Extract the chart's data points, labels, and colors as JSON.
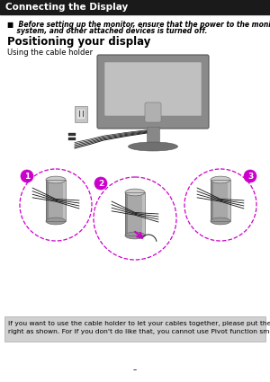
{
  "title": "Connecting the Display",
  "title_bg": "#1a1a1a",
  "title_color": "#ffffff",
  "title_fontsize": 7.5,
  "section_heading": "Positioning your display",
  "section_heading_fontsize": 8.5,
  "sub_heading": "Using the cable holder",
  "sub_heading_fontsize": 6.0,
  "bullet_text_line1": "■  Before setting up the monitor, ensure that the power to the monitor, the computer",
  "bullet_text_line2": "    system, and other attached devices is turned off.",
  "bullet_fontsize": 5.5,
  "footer_text_line1": "If you want to use the cable holder to let your cables together, please put them through",
  "footer_text_line2": "right as shown. For if you don't do like that, you cannot use Pivot function smoothly.",
  "footer_fontsize": 5.4,
  "footer_bg": "#d0d0d0",
  "page_bg": "#ffffff",
  "dashed_circle_color": "#cc00cc",
  "label_circle_color": "#cc00cc",
  "label_text_color": "#ffffff",
  "cable_color": "#1a1a1a",
  "arrow_color": "#cc00cc"
}
